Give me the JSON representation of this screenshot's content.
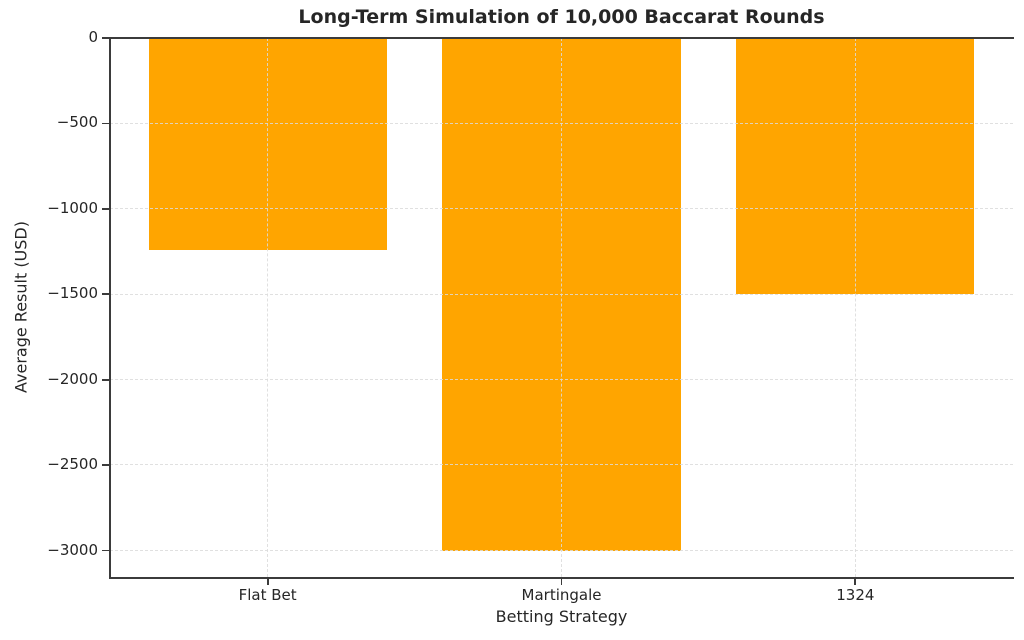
{
  "chart_data": {
    "type": "bar",
    "title": "Long-Term Simulation of 10,000 Baccarat Rounds",
    "xlabel": "Betting Strategy",
    "ylabel": "Average Result (USD)",
    "categories": [
      "Flat Bet",
      "Martingale",
      "1324"
    ],
    "values": [
      -1240,
      -3000,
      -1500
    ],
    "ylim": [
      -3155,
      0
    ],
    "yticks": [
      0,
      -500,
      -1000,
      -1500,
      -2000,
      -2500,
      -3000
    ],
    "grid": {
      "enabled": true,
      "style": "dashed",
      "axes": "both",
      "drawn_over_bars": true
    },
    "legend": "none",
    "colors": {
      "bar": "#FFA500",
      "grid": "#dbdbdb",
      "spine": "#3b3b3b",
      "text": "#262626",
      "background": "#ffffff"
    }
  }
}
